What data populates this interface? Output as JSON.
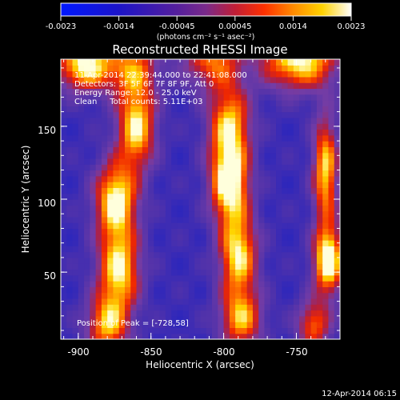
{
  "colorbar": {
    "tick_labels": [
      "-0.0023",
      "-0.0014",
      "-0.00045",
      "0.00045",
      "0.0014",
      "0.0023"
    ],
    "unit_line": "(photons cm⁻² s⁻¹ asec⁻²)",
    "range": [
      -0.0023,
      0.0023
    ]
  },
  "chart_data": {
    "type": "heatmap",
    "title": "Reconstructed RHESSI Image",
    "xlabel": "Heliocentric X (arcsec)",
    "ylabel": "Heliocentric Y (arcsec)",
    "xlim": [
      -912,
      -720
    ],
    "ylim": [
      4,
      196
    ],
    "xticks": [
      -900,
      -850,
      -800,
      -750
    ],
    "yticks": [
      50,
      100,
      150
    ],
    "xtick_labels": [
      "-900",
      "-850",
      "-800",
      "-750"
    ],
    "ytick_labels": [
      "50",
      "100",
      "150"
    ],
    "annotations": [
      "11-Apr-2014 22:39:44.000 to 22:41:08.000",
      "Detectors: 3F 5F 6F 7F 8F 9F, Att 0",
      "Energy Range: 12.0 - 25.0 keV",
      "Clean     Total counts: 5.11E+03"
    ],
    "peak_label": "Position of Peak = [-728,58]",
    "peak": [
      -728,
      58
    ],
    "sources": [
      {
        "x": -895,
        "y": 192,
        "sx": 14,
        "sy": 12,
        "amp": 0.9
      },
      {
        "x": -862,
        "y": 190,
        "sx": 12,
        "sy": 14,
        "amp": 0.55
      },
      {
        "x": -808,
        "y": 196,
        "sx": 14,
        "sy": 14,
        "amp": 0.6
      },
      {
        "x": -748,
        "y": 196,
        "sx": 18,
        "sy": 14,
        "amp": 0.9
      },
      {
        "x": -860,
        "y": 150,
        "sx": 9,
        "sy": 20,
        "amp": 0.85
      },
      {
        "x": -874,
        "y": 100,
        "sx": 10,
        "sy": 18,
        "amp": 0.9
      },
      {
        "x": -872,
        "y": 52,
        "sx": 10,
        "sy": 20,
        "amp": 0.85
      },
      {
        "x": -880,
        "y": 14,
        "sx": 10,
        "sy": 14,
        "amp": 0.7
      },
      {
        "x": -796,
        "y": 150,
        "sx": 10,
        "sy": 20,
        "amp": 0.8
      },
      {
        "x": -796,
        "y": 110,
        "sx": 9,
        "sy": 18,
        "amp": 0.95
      },
      {
        "x": -790,
        "y": 62,
        "sx": 9,
        "sy": 20,
        "amp": 0.85
      },
      {
        "x": -788,
        "y": 18,
        "sx": 10,
        "sy": 14,
        "amp": 0.7
      },
      {
        "x": -728,
        "y": 58,
        "sx": 7,
        "sy": 16,
        "amp": 1.0
      },
      {
        "x": -730,
        "y": 120,
        "sx": 6,
        "sy": 26,
        "amp": 0.8
      },
      {
        "x": -738,
        "y": 14,
        "sx": 8,
        "sy": 12,
        "amp": 0.6
      }
    ]
  },
  "footer": {
    "timestamp": "12-Apr-2014 06:15"
  }
}
